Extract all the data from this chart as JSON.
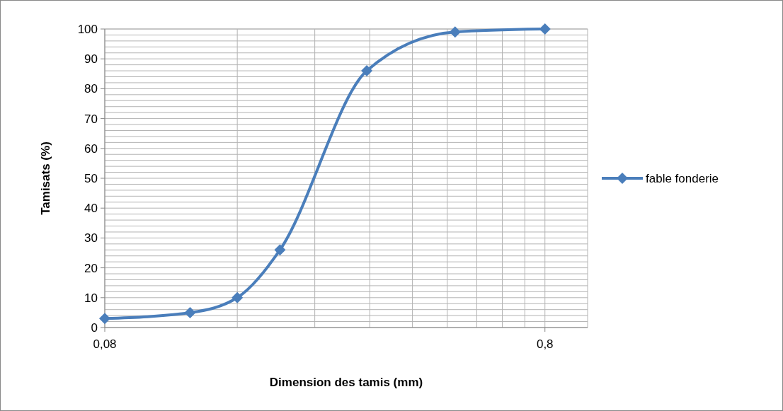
{
  "chart_data": {
    "type": "line",
    "xlabel": "Dimension des tamis (mm)",
    "ylabel": "Tamisats (%)",
    "log": "x",
    "grid": true,
    "legend": "right",
    "marker": "diamond",
    "line_style": "solid",
    "xlim": [
      0.08,
      1
    ],
    "ylim": [
      0,
      100
    ],
    "xticks": [
      {
        "value": 0.08,
        "label": "0,08"
      },
      {
        "value": 0.16,
        "label": null
      },
      {
        "value": 0.24,
        "label": null
      },
      {
        "value": 0.32,
        "label": null
      },
      {
        "value": 0.4,
        "label": null
      },
      {
        "value": 0.48,
        "label": null
      },
      {
        "value": 0.56,
        "label": null
      },
      {
        "value": 0.64,
        "label": null
      },
      {
        "value": 0.72,
        "label": null
      },
      {
        "value": 0.8,
        "label": "0,8"
      }
    ],
    "yticks": [
      0,
      {
        "value": 2,
        "label": null
      },
      {
        "value": 4,
        "label": null
      },
      {
        "value": 6,
        "label": null
      },
      {
        "value": 8,
        "label": null
      },
      10,
      {
        "value": 12,
        "label": null
      },
      {
        "value": 14,
        "label": null
      },
      {
        "value": 16,
        "label": null
      },
      {
        "value": 18,
        "label": null
      },
      20,
      {
        "value": 22,
        "label": null
      },
      {
        "value": 24,
        "label": null
      },
      {
        "value": 26,
        "label": null
      },
      {
        "value": 28,
        "label": null
      },
      30,
      {
        "value": 32,
        "label": null
      },
      {
        "value": 34,
        "label": null
      },
      {
        "value": 36,
        "label": null
      },
      {
        "value": 38,
        "label": null
      },
      40,
      {
        "value": 42,
        "label": null
      },
      {
        "value": 44,
        "label": null
      },
      {
        "value": 46,
        "label": null
      },
      {
        "value": 48,
        "label": null
      },
      50,
      {
        "value": 52,
        "label": null
      },
      {
        "value": 54,
        "label": null
      },
      {
        "value": 56,
        "label": null
      },
      {
        "value": 58,
        "label": null
      },
      60,
      {
        "value": 62,
        "label": null
      },
      {
        "value": 64,
        "label": null
      },
      {
        "value": 66,
        "label": null
      },
      {
        "value": 68,
        "label": null
      },
      70,
      {
        "value": 72,
        "label": null
      },
      {
        "value": 74,
        "label": null
      },
      {
        "value": 76,
        "label": null
      },
      {
        "value": 78,
        "label": null
      },
      80,
      {
        "value": 82,
        "label": null
      },
      {
        "value": 84,
        "label": null
      },
      {
        "value": 86,
        "label": null
      },
      {
        "value": 88,
        "label": null
      },
      90,
      {
        "value": 92,
        "label": null
      },
      {
        "value": 94,
        "label": null
      },
      {
        "value": 96,
        "label": null
      },
      {
        "value": 98,
        "label": null
      },
      100
    ],
    "x": [
      0.08,
      0.125,
      0.16,
      0.2,
      0.315,
      0.5,
      0.8
    ],
    "series": [
      {
        "name": "fable fonderie",
        "color": "#4a7ebb",
        "values": [
          3,
          5,
          10,
          26,
          86,
          99,
          100
        ]
      }
    ]
  }
}
